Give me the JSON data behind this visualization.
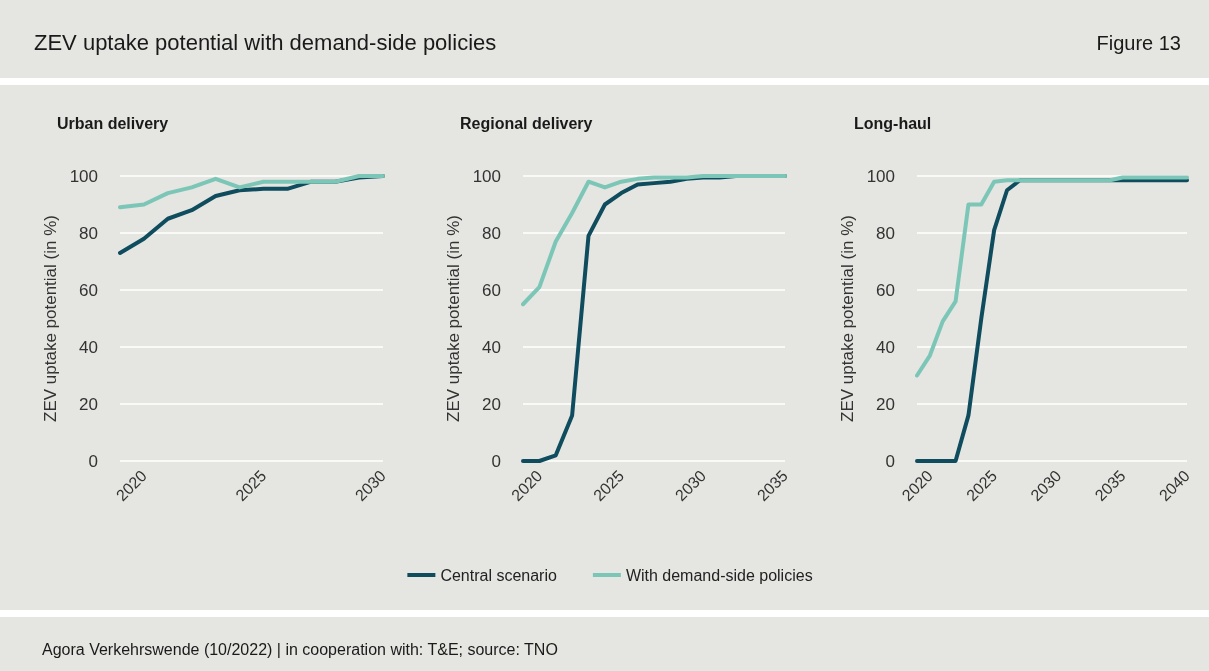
{
  "chart_data": [
    {
      "type": "line",
      "title": "Urban delivery",
      "ylabel": "ZEV uptake potential (in %)",
      "annotations": [
        "ZEV uptake potential with demand-side policies",
        "Figure 13",
        "Agora Verkehrswende (10/2022) | in cooperation with: T&E; source: TNO"
      ],
      "x": [
        2019,
        2020,
        2021,
        2022,
        2023,
        2024,
        2025,
        2026,
        2027,
        2028,
        2029,
        2030
      ],
      "series": [
        {
          "color": "#0e4c5e",
          "values": [
            73,
            78,
            85,
            88,
            93,
            95,
            95.5,
            95.5,
            98,
            98,
            99.5,
            100
          ]
        },
        {
          "color": "#7cc6b8",
          "values": [
            89,
            90,
            94,
            96,
            99,
            96,
            98,
            98,
            98,
            98,
            100,
            100
          ]
        }
      ],
      "xlim": [
        2019,
        2030
      ],
      "xticks": [
        2020,
        2025,
        2030
      ],
      "ylim": [
        0,
        100
      ],
      "yticks": [
        0,
        20,
        40,
        60,
        80,
        100
      ],
      "grid": "y",
      "line_style": "solid"
    },
    {
      "type": "line",
      "title": "Regional delivery",
      "ylabel": "ZEV uptake potential (in %)",
      "x": [
        2019,
        2020,
        2021,
        2022,
        2023,
        2024,
        2025,
        2026,
        2027,
        2028,
        2029,
        2030,
        2031,
        2032,
        2033,
        2034,
        2035
      ],
      "series": [
        {
          "name": "Central scenario",
          "color": "#0e4c5e",
          "values": [
            0,
            0,
            2,
            16,
            79,
            90,
            94,
            97,
            97.5,
            98,
            99,
            99.5,
            99.5,
            100,
            100,
            100,
            100
          ]
        },
        {
          "name": "With demand-side policies",
          "color": "#7cc6b8",
          "values": [
            55,
            61,
            77,
            87,
            98,
            96,
            98,
            99,
            99.5,
            99.5,
            99.5,
            100,
            100,
            100,
            100,
            100,
            100
          ]
        }
      ],
      "xlim": [
        2019,
        2035
      ],
      "xticks": [
        2020,
        2025,
        2030,
        2035
      ],
      "ylim": [
        0,
        100
      ],
      "yticks": [
        0,
        20,
        40,
        60,
        80,
        100
      ],
      "grid": "y",
      "line_style": "solid",
      "legend": "bottom"
    },
    {
      "type": "line",
      "title": "Long-haul",
      "ylabel": "ZEV uptake potential (in %)",
      "x": [
        2019,
        2020,
        2021,
        2022,
        2023,
        2024,
        2025,
        2026,
        2027,
        2028,
        2029,
        2030,
        2031,
        2032,
        2033,
        2034,
        2035,
        2036,
        2037,
        2038,
        2039,
        2040
      ],
      "series": [
        {
          "color": "#0e4c5e",
          "values": [
            0,
            0,
            0,
            0,
            16,
            50,
            81,
            95,
            98.5,
            98.5,
            98.5,
            98.5,
            98.5,
            98.5,
            98.5,
            98.5,
            98.5,
            98.5,
            98.5,
            98.5,
            98.5,
            98.5
          ]
        },
        {
          "color": "#7cc6b8",
          "values": [
            30,
            37,
            49,
            56,
            90,
            90,
            98,
            98.5,
            98.5,
            98.5,
            98.5,
            98.5,
            98.5,
            98.5,
            98.5,
            98.5,
            99.5,
            99.5,
            99.5,
            99.5,
            99.5,
            99.5
          ]
        }
      ],
      "xlim": [
        2019,
        2040
      ],
      "xticks": [
        2020,
        2025,
        2030,
        2035,
        2040
      ],
      "ylim": [
        0,
        100
      ],
      "yticks": [
        0,
        20,
        40,
        60,
        80,
        100
      ],
      "grid": "y",
      "line_style": "solid"
    }
  ]
}
